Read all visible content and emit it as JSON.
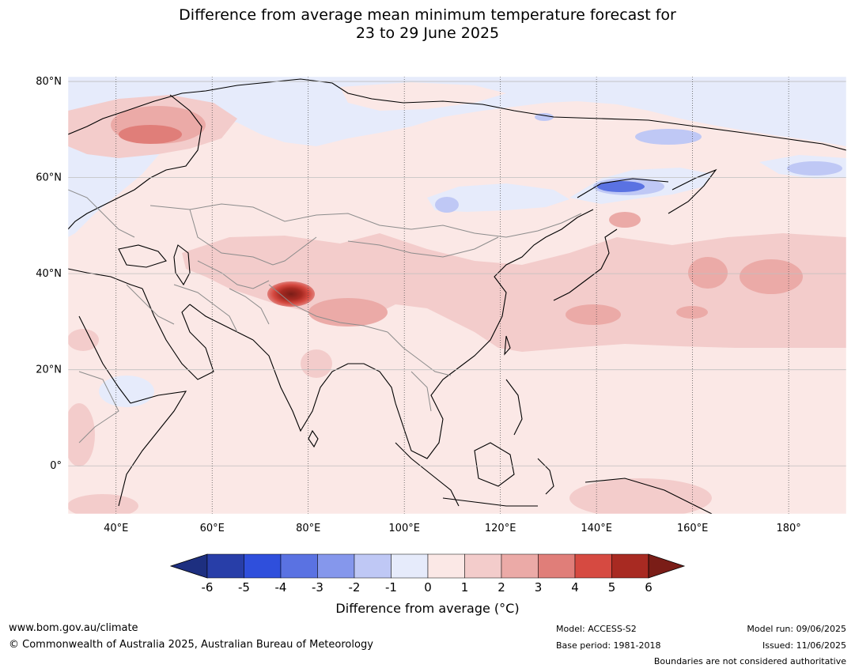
{
  "title": {
    "line1": "Difference from average mean minimum temperature forecast for",
    "line2": "23 to 29 June 2025"
  },
  "map": {
    "lon_range": [
      30,
      192
    ],
    "lat_range": [
      -10,
      81
    ],
    "lat_ticks": [
      {
        "value": 80,
        "label": "80°N"
      },
      {
        "value": 60,
        "label": "60°N"
      },
      {
        "value": 40,
        "label": "40°N"
      },
      {
        "value": 20,
        "label": "20°N"
      },
      {
        "value": 0,
        "label": "0°"
      }
    ],
    "lon_ticks": [
      {
        "value": 40,
        "label": "40°E"
      },
      {
        "value": 60,
        "label": "60°E"
      },
      {
        "value": 80,
        "label": "80°E"
      },
      {
        "value": 100,
        "label": "100°E"
      },
      {
        "value": 120,
        "label": "120°E"
      },
      {
        "value": 140,
        "label": "140°E"
      },
      {
        "value": 160,
        "label": "160°E"
      },
      {
        "value": 180,
        "label": "180°"
      }
    ],
    "colors": {
      "ocean_base": "#fbe8e6",
      "land_line": "#000000",
      "border_line": "#8c8c8c",
      "grid_line": "#bfbfbf"
    }
  },
  "colorbar": {
    "label": "Difference from average ( $^\\circ$C)",
    "label_text": "Difference from average (°C)",
    "ticks": [
      "-6",
      "-5",
      "-4",
      "-3",
      "-2",
      "-1",
      "0",
      "1",
      "2",
      "3",
      "4",
      "5",
      "6"
    ],
    "colors": [
      "#1d2f80",
      "#283ea8",
      "#2f4fdc",
      "#5a72e2",
      "#8597ec",
      "#bfc8f5",
      "#e6ebfb",
      "#fbe8e6",
      "#f3cccb",
      "#ebaaa7",
      "#e07e79",
      "#d64a41",
      "#a82a22",
      "#7a1d17"
    ]
  },
  "footer": {
    "website": "www.bom.gov.au/climate",
    "copyright": "© Commonwealth of Australia 2025, Australian Bureau of Meteorology",
    "model": "Model: ACCESS-S2",
    "base_period": "Base period: 1981-2018",
    "model_run": "Model run: 09/06/2025",
    "issued": "Issued: 11/06/2025",
    "disclaimer": "Boundaries are not considered authoritative"
  }
}
